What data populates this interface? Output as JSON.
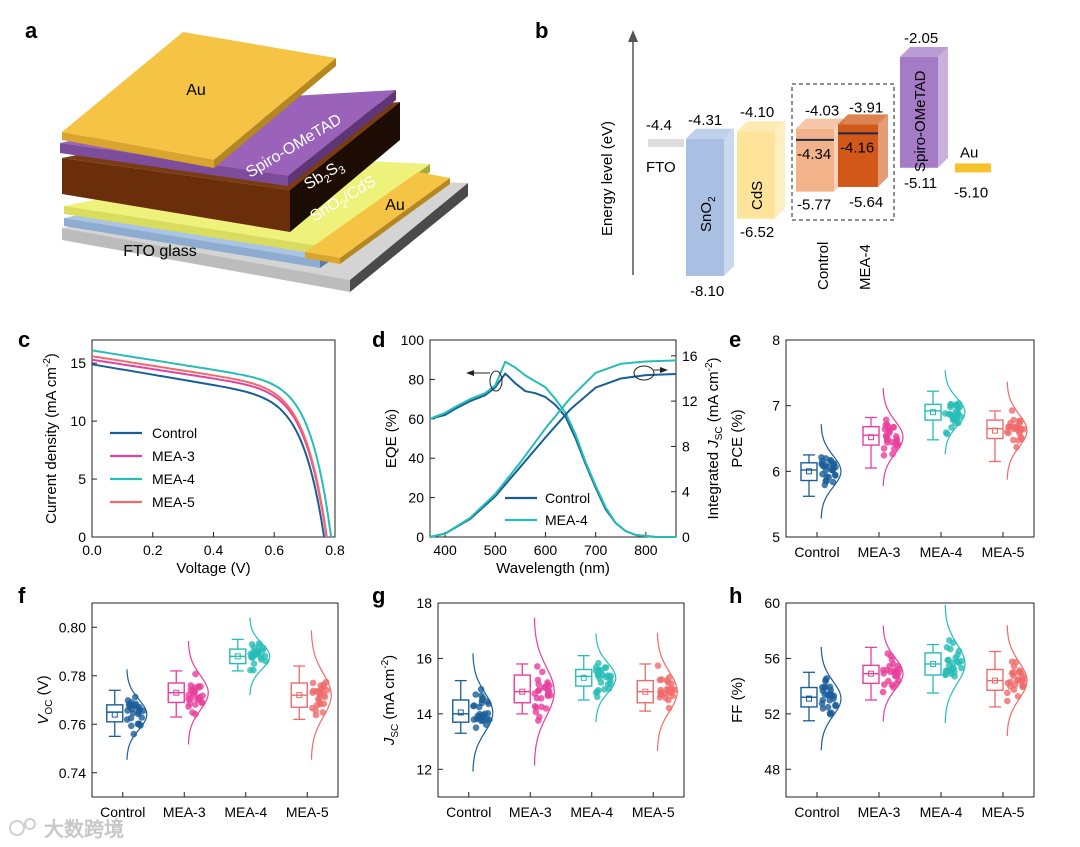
{
  "panel_labels": [
    "a",
    "b",
    "c",
    "d",
    "e",
    "f",
    "g",
    "h"
  ],
  "watermark": "大数跨境",
  "colors": {
    "Control": "#1a5e98",
    "MEA-3": "#e83e9c",
    "MEA-4": "#27bdb7",
    "MEA-5": "#ef6b6b"
  },
  "chart_data": [
    {
      "id": "a",
      "type": "diagram",
      "layers": [
        {
          "name": "FTO glass",
          "label": "FTO glass",
          "color": "#d4d4d4"
        },
        {
          "name": "SnO2",
          "label": "SnO",
          "sub": "2",
          "suffix": "/CdS",
          "color": "#a9c4e4"
        },
        {
          "name": "CdS",
          "color": "#eef17a"
        },
        {
          "name": "Sb2S3",
          "label": "Sb",
          "sub": "2",
          "label2": "S",
          "sub2": "3",
          "color": "#7a3a12"
        },
        {
          "name": "Spiro-OMeTAD",
          "label": "Spiro-OMeTAD",
          "color": "#9a62b8"
        },
        {
          "name": "Au",
          "label": "Au",
          "color": "#f6c445"
        }
      ]
    },
    {
      "id": "b",
      "type": "energy-level",
      "ylabel": "Energy level (eV)",
      "bands": [
        {
          "name": "FTO",
          "level": -4.4,
          "level_label": "-4.4",
          "color": "#dcdcdc"
        },
        {
          "name": "SnO2",
          "label": "SnO",
          "sub": "2",
          "top": -4.31,
          "bottom": -8.1,
          "top_label": "-4.31",
          "bottom_label": "-8.10",
          "color": "#a9c0e3"
        },
        {
          "name": "CdS",
          "label": "CdS",
          "top": -4.1,
          "bottom": -6.52,
          "top_label": "-4.10",
          "bottom_label": "-6.52",
          "color": "#fde49a"
        },
        {
          "name": "Control",
          "label": "Control",
          "top": -4.03,
          "bottom": -5.77,
          "mid": -4.34,
          "top_label": "-4.03",
          "bottom_label": "-5.77",
          "mid_label": "-4.34",
          "color": "#f2b38b"
        },
        {
          "name": "MEA-4",
          "label": "MEA-4",
          "top": -3.91,
          "bottom": -5.64,
          "mid": -4.16,
          "top_label": "-3.91",
          "bottom_label": "-5.64",
          "mid_label": "-4.16",
          "color": "#d2581a"
        },
        {
          "name": "Spiro-OMeTAD",
          "label": "Spiro-OMeTAD",
          "top": -2.05,
          "bottom": -5.11,
          "top_label": "-2.05",
          "bottom_label": "-5.11",
          "color": "#a57bc6"
        },
        {
          "name": "Au",
          "label": "Au",
          "level": -5.1,
          "level_label": "-5.10",
          "color": "#f6c22a"
        }
      ]
    },
    {
      "id": "c",
      "type": "line",
      "xlabel": "Voltage (V)",
      "ylabel": "Current density (mA cm",
      "ylabel_sup": "-2",
      "ylabel_tail": ")",
      "xlim": [
        0,
        0.8
      ],
      "ylim": [
        0,
        17
      ],
      "xticks": [
        0.0,
        0.2,
        0.4,
        0.6,
        0.8
      ],
      "xtick_labels": [
        "0.0",
        "0.2",
        "0.4",
        "0.6",
        "0.8"
      ],
      "yticks": [
        0,
        5,
        10,
        15
      ],
      "ytick_labels": [
        "0",
        "5",
        "10",
        "15"
      ],
      "legend": "center-left",
      "series": [
        {
          "name": "Control",
          "jsc": 14.9,
          "voc": 0.764,
          "k": 0.095,
          "n": 7
        },
        {
          "name": "MEA-3",
          "jsc": 15.3,
          "voc": 0.772,
          "k": 0.085,
          "n": 7
        },
        {
          "name": "MEA-4",
          "jsc": 16.1,
          "voc": 0.787,
          "k": 0.085,
          "n": 7.5
        },
        {
          "name": "MEA-5",
          "jsc": 15.6,
          "voc": 0.773,
          "k": 0.085,
          "n": 7
        }
      ]
    },
    {
      "id": "d",
      "type": "line",
      "xlabel": "Wavelength (nm)",
      "ylabel": "EQE (%)",
      "y2label_pre": "Integrated ",
      "y2label_italic": "J",
      "y2label_sub": "SC",
      "y2label_post": " (mA cm",
      "y2label_sup": "-2",
      "y2label_tail": ")",
      "xlim": [
        370,
        860
      ],
      "ylim": [
        0,
        100
      ],
      "y2lim": [
        0,
        17.4
      ],
      "xticks": [
        400,
        500,
        600,
        700,
        800
      ],
      "xtick_labels": [
        "400",
        "500",
        "600",
        "700",
        "800"
      ],
      "yticks": [
        0,
        20,
        40,
        60,
        80,
        100
      ],
      "ytick_labels": [
        "0",
        "20",
        "40",
        "60",
        "80",
        "100"
      ],
      "y2ticks": [
        0,
        4,
        8,
        12,
        16
      ],
      "y2tick_labels": [
        "0",
        "4",
        "8",
        "12",
        "16"
      ],
      "legend": "lower-center",
      "eqe": [
        {
          "name": "Control",
          "x": [
            370,
            400,
            420,
            450,
            480,
            500,
            520,
            540,
            560,
            580,
            600,
            620,
            640,
            660,
            680,
            700,
            720,
            740,
            760,
            780,
            800,
            820,
            860
          ],
          "y": [
            60,
            62,
            65,
            69,
            72,
            76,
            83,
            78,
            74,
            73,
            71,
            67,
            61,
            50,
            37,
            25,
            14,
            7,
            3,
            1,
            0.5,
            0,
            0
          ]
        },
        {
          "name": "MEA-4",
          "x": [
            370,
            400,
            420,
            450,
            480,
            500,
            520,
            540,
            560,
            580,
            600,
            620,
            640,
            660,
            680,
            700,
            720,
            740,
            760,
            780,
            800,
            820,
            860
          ],
          "y": [
            60,
            63,
            66,
            70,
            73,
            77,
            89,
            86,
            82,
            79,
            76,
            70,
            63,
            52,
            38,
            26,
            15,
            7,
            3,
            1,
            0.5,
            0,
            0
          ]
        }
      ],
      "jsc_int": [
        {
          "name": "Control",
          "x": [
            370,
            400,
            450,
            500,
            550,
            600,
            650,
            700,
            750,
            800,
            860
          ],
          "y": [
            0,
            0.3,
            1.6,
            3.6,
            6.2,
            8.8,
            11.3,
            13.2,
            14.0,
            14.3,
            14.4
          ]
        },
        {
          "name": "MEA-4",
          "x": [
            370,
            400,
            450,
            500,
            550,
            600,
            650,
            700,
            750,
            800,
            860
          ],
          "y": [
            0,
            0.3,
            1.7,
            3.8,
            6.6,
            9.6,
            12.3,
            14.5,
            15.3,
            15.5,
            15.6
          ]
        }
      ],
      "annotations": [
        {
          "type": "arrow",
          "direction": "left",
          "targets": "EQE (%)"
        },
        {
          "type": "arrow",
          "direction": "right",
          "targets": "Integrated JSC"
        }
      ]
    },
    {
      "id": "e",
      "type": "box",
      "ylabel": "PCE (%)",
      "ylim": [
        5,
        8
      ],
      "yticks": [
        5,
        6,
        7,
        8
      ],
      "ytick_labels": [
        "5",
        "6",
        "7",
        "8"
      ],
      "categories": [
        "Control",
        "MEA-3",
        "MEA-4",
        "MEA-5"
      ],
      "boxes": [
        {
          "name": "Control",
          "whisker_low": 5.62,
          "q1": 5.86,
          "median": 6.02,
          "mean": 6.0,
          "q3": 6.13,
          "whisker_high": 6.25
        },
        {
          "name": "MEA-3",
          "whisker_low": 6.05,
          "q1": 6.4,
          "median": 6.55,
          "mean": 6.52,
          "q3": 6.68,
          "whisker_high": 6.82
        },
        {
          "name": "MEA-4",
          "whisker_low": 6.48,
          "q1": 6.78,
          "median": 6.92,
          "mean": 6.9,
          "q3": 7.02,
          "whisker_high": 7.22
        },
        {
          "name": "MEA-5",
          "whisker_low": 6.15,
          "q1": 6.5,
          "median": 6.65,
          "mean": 6.62,
          "q3": 6.78,
          "whisker_high": 6.92
        }
      ]
    },
    {
      "id": "f",
      "type": "box",
      "ylabel_italic": "V",
      "ylabel_sub": "OC",
      "ylabel_post": " (V)",
      "ylim": [
        0.73,
        0.81
      ],
      "yticks": [
        0.74,
        0.76,
        0.78,
        0.8
      ],
      "ytick_labels": [
        "0.74",
        "0.76",
        "0.78",
        "0.80"
      ],
      "categories": [
        "Control",
        "MEA-3",
        "MEA-4",
        "MEA-5"
      ],
      "boxes": [
        {
          "name": "Control",
          "whisker_low": 0.755,
          "q1": 0.761,
          "median": 0.765,
          "mean": 0.764,
          "q3": 0.768,
          "whisker_high": 0.774
        },
        {
          "name": "MEA-3",
          "whisker_low": 0.763,
          "q1": 0.769,
          "median": 0.773,
          "mean": 0.773,
          "q3": 0.777,
          "whisker_high": 0.782
        },
        {
          "name": "MEA-4",
          "whisker_low": 0.782,
          "q1": 0.785,
          "median": 0.788,
          "mean": 0.788,
          "q3": 0.791,
          "whisker_high": 0.795
        },
        {
          "name": "MEA-5",
          "whisker_low": 0.762,
          "q1": 0.767,
          "median": 0.772,
          "mean": 0.772,
          "q3": 0.777,
          "whisker_high": 0.784
        }
      ]
    },
    {
      "id": "g",
      "type": "box",
      "ylabel_italic": "J",
      "ylabel_sub": "SC",
      "ylabel_post": " (mA cm",
      "ylabel_sup": "-2",
      "ylabel_tail": ")",
      "ylim": [
        11,
        18
      ],
      "yticks": [
        12,
        14,
        16,
        18
      ],
      "ytick_labels": [
        "12",
        "14",
        "16",
        "18"
      ],
      "categories": [
        "Control",
        "MEA-3",
        "MEA-4",
        "MEA-5"
      ],
      "boxes": [
        {
          "name": "Control",
          "whisker_low": 13.3,
          "q1": 13.7,
          "median": 14.0,
          "mean": 14.05,
          "q3": 14.5,
          "whisker_high": 15.2
        },
        {
          "name": "MEA-3",
          "whisker_low": 14.0,
          "q1": 14.4,
          "median": 14.8,
          "mean": 14.8,
          "q3": 15.4,
          "whisker_high": 15.8
        },
        {
          "name": "MEA-4",
          "whisker_low": 14.5,
          "q1": 15.0,
          "median": 15.35,
          "mean": 15.3,
          "q3": 15.6,
          "whisker_high": 16.1
        },
        {
          "name": "MEA-5",
          "whisker_low": 14.1,
          "q1": 14.4,
          "median": 14.8,
          "mean": 14.8,
          "q3": 15.2,
          "whisker_high": 15.8
        }
      ]
    },
    {
      "id": "h",
      "type": "box",
      "ylabel": "FF (%)",
      "ylim": [
        46,
        60
      ],
      "yticks": [
        48,
        52,
        56,
        60
      ],
      "ytick_labels": [
        "48",
        "52",
        "56",
        "60"
      ],
      "categories": [
        "Control",
        "MEA-3",
        "MEA-4",
        "MEA-5"
      ],
      "boxes": [
        {
          "name": "Control",
          "whisker_low": 51.5,
          "q1": 52.5,
          "median": 53.2,
          "mean": 53.1,
          "q3": 53.9,
          "whisker_high": 55.0
        },
        {
          "name": "MEA-3",
          "whisker_low": 53.0,
          "q1": 54.2,
          "median": 54.9,
          "mean": 54.9,
          "q3": 55.5,
          "whisker_high": 56.8
        },
        {
          "name": "MEA-4",
          "whisker_low": 53.5,
          "q1": 54.8,
          "median": 55.6,
          "mean": 55.6,
          "q3": 56.4,
          "whisker_high": 57.0
        },
        {
          "name": "MEA-5",
          "whisker_low": 52.5,
          "q1": 53.7,
          "median": 54.4,
          "mean": 54.4,
          "q3": 55.2,
          "whisker_high": 56.5
        }
      ]
    }
  ]
}
